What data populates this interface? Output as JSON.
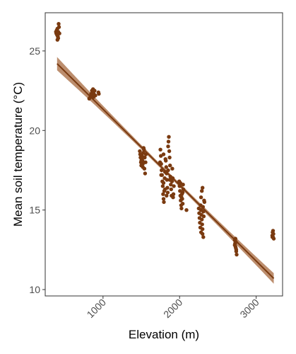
{
  "chart_data": {
    "type": "scatter",
    "xlabel": "Elevation (m)",
    "ylabel": "Mean soil temperature (°C)",
    "xlim": [
      245,
      3345
    ],
    "ylim": [
      9.6,
      27.4
    ],
    "x_ticks": [
      1000,
      2000,
      3000
    ],
    "x_tick_labels": [
      "1000",
      "2000",
      "3000"
    ],
    "y_ticks": [
      10,
      15,
      20,
      25
    ],
    "y_tick_labels": [
      "10",
      "15",
      "20",
      "25"
    ],
    "grid": false,
    "legend": "none",
    "point_color": "#7a3a10",
    "line_color": "#7a3a10",
    "ribbon_color": "#b07a55",
    "series": [
      {
        "points": [
          [
            385,
            26.2
          ],
          [
            390,
            26.1
          ],
          [
            395,
            26.3
          ],
          [
            400,
            26.0
          ],
          [
            405,
            26.4
          ],
          [
            410,
            25.9
          ],
          [
            415,
            26.2
          ],
          [
            420,
            26.7
          ],
          [
            425,
            26.5
          ],
          [
            430,
            26.1
          ],
          [
            405,
            25.7
          ],
          [
            415,
            25.8
          ],
          [
            820,
            22.0
          ],
          [
            835,
            22.1
          ],
          [
            845,
            22.3
          ],
          [
            855,
            22.5
          ],
          [
            860,
            22.2
          ],
          [
            865,
            22.4
          ],
          [
            870,
            22.6
          ],
          [
            875,
            22.1
          ],
          [
            880,
            22.3
          ],
          [
            890,
            22.5
          ],
          [
            900,
            22.2
          ],
          [
            940,
            22.4
          ],
          [
            945,
            22.3
          ],
          [
            1480,
            18.7
          ],
          [
            1485,
            18.5
          ],
          [
            1490,
            18.3
          ],
          [
            1495,
            18.0
          ],
          [
            1500,
            17.8
          ],
          [
            1505,
            18.2
          ],
          [
            1510,
            18.4
          ],
          [
            1515,
            18.1
          ],
          [
            1520,
            17.9
          ],
          [
            1525,
            18.6
          ],
          [
            1530,
            18.9
          ],
          [
            1535,
            18.8
          ],
          [
            1540,
            17.6
          ],
          [
            1545,
            18.3
          ],
          [
            1550,
            17.3
          ],
          [
            1555,
            18.0
          ],
          [
            1560,
            18.5
          ],
          [
            1520,
            17.7
          ],
          [
            1500,
            18.1
          ],
          [
            1745,
            18.0
          ],
          [
            1750,
            18.8
          ],
          [
            1755,
            18.4
          ],
          [
            1760,
            17.9
          ],
          [
            1765,
            17.5
          ],
          [
            1770,
            17.2
          ],
          [
            1775,
            16.8
          ],
          [
            1780,
            16.5
          ],
          [
            1785,
            16.0
          ],
          [
            1790,
            15.7
          ],
          [
            1795,
            15.5
          ],
          [
            1800,
            16.2
          ],
          [
            1805,
            17.0
          ],
          [
            1810,
            17.4
          ],
          [
            1815,
            18.2
          ],
          [
            1820,
            18.1
          ],
          [
            1825,
            17.7
          ],
          [
            1830,
            17.3
          ],
          [
            1835,
            16.9
          ],
          [
            1840,
            16.4
          ],
          [
            1845,
            16.1
          ],
          [
            1850,
            19.0
          ],
          [
            1855,
            19.3
          ],
          [
            1860,
            19.6
          ],
          [
            1865,
            18.7
          ],
          [
            1870,
            18.3
          ],
          [
            1875,
            17.8
          ],
          [
            1880,
            17.1
          ],
          [
            1885,
            16.6
          ],
          [
            1890,
            16.3
          ],
          [
            1895,
            15.9
          ],
          [
            1900,
            16.8
          ],
          [
            1905,
            17.6
          ],
          [
            1910,
            17.0
          ],
          [
            1915,
            15.8
          ],
          [
            1920,
            16.0
          ],
          [
            1925,
            16.5
          ],
          [
            1790,
            16.7
          ],
          [
            1810,
            16.3
          ],
          [
            1830,
            15.9
          ],
          [
            1850,
            17.5
          ],
          [
            1870,
            16.9
          ],
          [
            1790,
            18.5
          ],
          [
            1760,
            17.2
          ],
          [
            1995,
            16.8
          ],
          [
            2000,
            16.5
          ],
          [
            2005,
            16.2
          ],
          [
            2010,
            15.9
          ],
          [
            2015,
            15.6
          ],
          [
            2020,
            15.3
          ],
          [
            2025,
            15.1
          ],
          [
            2030,
            16.0
          ],
          [
            2035,
            15.7
          ],
          [
            2040,
            15.4
          ],
          [
            2045,
            16.6
          ],
          [
            2050,
            16.3
          ],
          [
            2010,
            16.7
          ],
          [
            2025,
            15.8
          ],
          [
            2040,
            16.1
          ],
          [
            2090,
            15.0
          ],
          [
            2250,
            15.1
          ],
          [
            2255,
            14.8
          ],
          [
            2260,
            14.5
          ],
          [
            2265,
            14.2
          ],
          [
            2270,
            13.9
          ],
          [
            2275,
            15.3
          ],
          [
            2280,
            15.0
          ],
          [
            2285,
            14.7
          ],
          [
            2290,
            14.4
          ],
          [
            2295,
            14.1
          ],
          [
            2300,
            13.8
          ],
          [
            2305,
            15.2
          ],
          [
            2310,
            14.9
          ],
          [
            2315,
            14.6
          ],
          [
            2320,
            15.6
          ],
          [
            2325,
            15.5
          ],
          [
            2290,
            16.2
          ],
          [
            2300,
            16.4
          ],
          [
            2280,
            15.8
          ],
          [
            2300,
            13.5
          ],
          [
            2310,
            13.3
          ],
          [
            2280,
            13.6
          ],
          [
            2720,
            13.1
          ],
          [
            2725,
            12.9
          ],
          [
            2730,
            12.7
          ],
          [
            2735,
            12.6
          ],
          [
            2740,
            12.4
          ],
          [
            2745,
            12.2
          ],
          [
            2720,
            12.8
          ],
          [
            2730,
            13.2
          ],
          [
            2740,
            12.5
          ],
          [
            2735,
            13.0
          ],
          [
            3210,
            13.4
          ],
          [
            3215,
            13.6
          ],
          [
            3220,
            13.3
          ],
          [
            3225,
            13.5
          ],
          [
            3230,
            13.2
          ],
          [
            3220,
            13.7
          ],
          [
            3212,
            13.3
          ]
        ]
      }
    ],
    "fit": {
      "x_start": 400,
      "y_start": 24.2,
      "x_end": 3230,
      "y_end": 10.7,
      "ci_start": 0.42,
      "ci_mid": 0.12,
      "ci_end": 0.33
    }
  }
}
